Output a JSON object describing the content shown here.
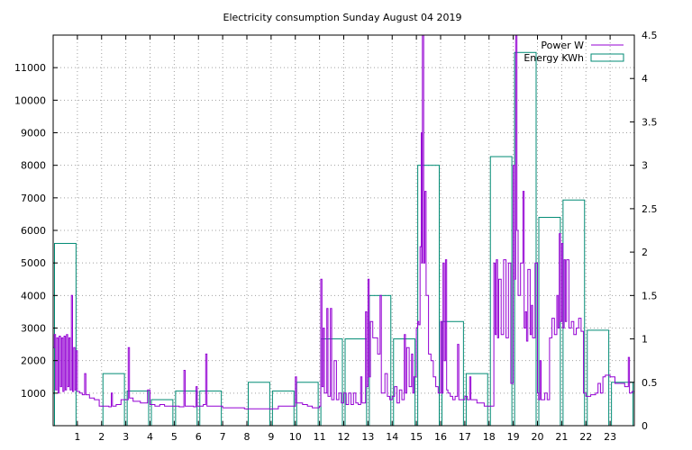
{
  "chart_data": {
    "type": "line",
    "title": "Electricity consumption Sunday August 04 2019",
    "x_axis": {
      "min": 0,
      "max": 24,
      "ticks": [
        1,
        2,
        3,
        4,
        5,
        6,
        7,
        8,
        9,
        10,
        11,
        12,
        13,
        14,
        15,
        16,
        17,
        18,
        19,
        20,
        21,
        22,
        23
      ]
    },
    "y_axis_left": {
      "min": 0,
      "max": 12000,
      "ticks": [
        1000,
        2000,
        3000,
        4000,
        5000,
        6000,
        7000,
        8000,
        9000,
        10000,
        11000
      ]
    },
    "y_axis_right": {
      "min": 0,
      "max": 4.5,
      "ticks": [
        "0",
        "0.5",
        "1",
        "1.5",
        "2",
        "2.5",
        "3",
        "3.5",
        "4",
        "4.5"
      ]
    },
    "grid": true,
    "legend_position": "top-right",
    "series": [
      {
        "name": "Power W",
        "axis": "left",
        "color": "#9400d3",
        "points": [
          [
            0.0,
            2400
          ],
          [
            0.05,
            2800
          ],
          [
            0.1,
            1100
          ],
          [
            0.15,
            2700
          ],
          [
            0.2,
            1000
          ],
          [
            0.25,
            2750
          ],
          [
            0.3,
            1200
          ],
          [
            0.35,
            2700
          ],
          [
            0.4,
            1050
          ],
          [
            0.45,
            2750
          ],
          [
            0.5,
            1100
          ],
          [
            0.55,
            2800
          ],
          [
            0.6,
            1200
          ],
          [
            0.65,
            2700
          ],
          [
            0.7,
            1100
          ],
          [
            0.75,
            4000
          ],
          [
            0.8,
            1050
          ],
          [
            0.85,
            2400
          ],
          [
            0.9,
            1100
          ],
          [
            0.95,
            2300
          ],
          [
            1.0,
            1050
          ],
          [
            1.1,
            1000
          ],
          [
            1.2,
            950
          ],
          [
            1.3,
            1600
          ],
          [
            1.35,
            950
          ],
          [
            1.5,
            850
          ],
          [
            1.7,
            800
          ],
          [
            1.9,
            600
          ],
          [
            2.1,
            600
          ],
          [
            2.3,
            580
          ],
          [
            2.4,
            1000
          ],
          [
            2.45,
            600
          ],
          [
            2.6,
            650
          ],
          [
            2.8,
            800
          ],
          [
            3.0,
            800
          ],
          [
            3.1,
            2400
          ],
          [
            3.15,
            850
          ],
          [
            3.3,
            750
          ],
          [
            3.6,
            700
          ],
          [
            3.8,
            700
          ],
          [
            3.9,
            1100
          ],
          [
            4.0,
            650
          ],
          [
            4.2,
            600
          ],
          [
            4.4,
            650
          ],
          [
            4.6,
            600
          ],
          [
            4.8,
            600
          ],
          [
            5.0,
            600
          ],
          [
            5.2,
            580
          ],
          [
            5.4,
            1700
          ],
          [
            5.45,
            600
          ],
          [
            5.6,
            600
          ],
          [
            5.8,
            580
          ],
          [
            5.9,
            1200
          ],
          [
            5.95,
            600
          ],
          [
            6.2,
            650
          ],
          [
            6.3,
            2200
          ],
          [
            6.35,
            600
          ],
          [
            6.6,
            600
          ],
          [
            6.9,
            600
          ],
          [
            7.0,
            550
          ],
          [
            7.3,
            550
          ],
          [
            7.6,
            550
          ],
          [
            7.9,
            520
          ],
          [
            8.2,
            520
          ],
          [
            8.5,
            520
          ],
          [
            8.8,
            520
          ],
          [
            9.0,
            520
          ],
          [
            9.3,
            600
          ],
          [
            9.5,
            600
          ],
          [
            9.8,
            600
          ],
          [
            10.0,
            1500
          ],
          [
            10.05,
            700
          ],
          [
            10.3,
            650
          ],
          [
            10.5,
            600
          ],
          [
            10.7,
            550
          ],
          [
            10.9,
            550
          ],
          [
            11.0,
            600
          ],
          [
            11.05,
            4500
          ],
          [
            11.1,
            1200
          ],
          [
            11.15,
            3000
          ],
          [
            11.2,
            1000
          ],
          [
            11.3,
            3600
          ],
          [
            11.35,
            900
          ],
          [
            11.45,
            3600
          ],
          [
            11.5,
            800
          ],
          [
            11.6,
            2000
          ],
          [
            11.7,
            800
          ],
          [
            11.8,
            1000
          ],
          [
            11.9,
            700
          ],
          [
            12.0,
            1000
          ],
          [
            12.1,
            650
          ],
          [
            12.2,
            1000
          ],
          [
            12.3,
            650
          ],
          [
            12.4,
            1000
          ],
          [
            12.5,
            700
          ],
          [
            12.6,
            650
          ],
          [
            12.7,
            1500
          ],
          [
            12.75,
            700
          ],
          [
            12.9,
            3500
          ],
          [
            12.95,
            1200
          ],
          [
            13.0,
            4500
          ],
          [
            13.05,
            1500
          ],
          [
            13.1,
            3200
          ],
          [
            13.2,
            2700
          ],
          [
            13.3,
            2700
          ],
          [
            13.4,
            2200
          ],
          [
            13.5,
            4000
          ],
          [
            13.55,
            1000
          ],
          [
            13.7,
            1600
          ],
          [
            13.8,
            900
          ],
          [
            13.9,
            800
          ],
          [
            14.0,
            900
          ],
          [
            14.1,
            1200
          ],
          [
            14.2,
            700
          ],
          [
            14.3,
            1100
          ],
          [
            14.4,
            800
          ],
          [
            14.5,
            2800
          ],
          [
            14.55,
            1000
          ],
          [
            14.6,
            2400
          ],
          [
            14.7,
            1200
          ],
          [
            14.8,
            2200
          ],
          [
            14.85,
            1000
          ],
          [
            14.9,
            1500
          ],
          [
            15.0,
            3000
          ],
          [
            15.05,
            3200
          ],
          [
            15.1,
            3100
          ],
          [
            15.15,
            5500
          ],
          [
            15.2,
            9000
          ],
          [
            15.22,
            5000
          ],
          [
            15.25,
            12000
          ],
          [
            15.3,
            5000
          ],
          [
            15.35,
            7200
          ],
          [
            15.4,
            4000
          ],
          [
            15.5,
            2200
          ],
          [
            15.6,
            2000
          ],
          [
            15.7,
            1500
          ],
          [
            15.8,
            1200
          ],
          [
            15.9,
            1000
          ],
          [
            16.0,
            3200
          ],
          [
            16.05,
            1000
          ],
          [
            16.1,
            5000
          ],
          [
            16.15,
            2000
          ],
          [
            16.2,
            5100
          ],
          [
            16.25,
            1100
          ],
          [
            16.3,
            1000
          ],
          [
            16.4,
            900
          ],
          [
            16.5,
            800
          ],
          [
            16.6,
            900
          ],
          [
            16.7,
            2500
          ],
          [
            16.75,
            800
          ],
          [
            16.9,
            800
          ],
          [
            17.0,
            900
          ],
          [
            17.1,
            800
          ],
          [
            17.2,
            1500
          ],
          [
            17.25,
            800
          ],
          [
            17.5,
            700
          ],
          [
            17.8,
            600
          ],
          [
            18.0,
            600
          ],
          [
            18.1,
            600
          ],
          [
            18.2,
            5000
          ],
          [
            18.25,
            2800
          ],
          [
            18.3,
            5100
          ],
          [
            18.35,
            2700
          ],
          [
            18.4,
            4500
          ],
          [
            18.5,
            2800
          ],
          [
            18.6,
            5100
          ],
          [
            18.7,
            2700
          ],
          [
            18.8,
            5000
          ],
          [
            18.9,
            1300
          ],
          [
            19.0,
            8000
          ],
          [
            19.05,
            4500
          ],
          [
            19.1,
            12000
          ],
          [
            19.15,
            6000
          ],
          [
            19.2,
            4000
          ],
          [
            19.3,
            5000
          ],
          [
            19.4,
            7200
          ],
          [
            19.45,
            3000
          ],
          [
            19.5,
            3500
          ],
          [
            19.55,
            2600
          ],
          [
            19.6,
            4800
          ],
          [
            19.7,
            2800
          ],
          [
            19.75,
            3700
          ],
          [
            19.8,
            2700
          ],
          [
            19.9,
            5000
          ],
          [
            20.0,
            1000
          ],
          [
            20.05,
            800
          ],
          [
            20.1,
            2000
          ],
          [
            20.15,
            800
          ],
          [
            20.3,
            1000
          ],
          [
            20.4,
            800
          ],
          [
            20.5,
            2700
          ],
          [
            20.6,
            3300
          ],
          [
            20.7,
            2800
          ],
          [
            20.8,
            4000
          ],
          [
            20.85,
            3000
          ],
          [
            20.9,
            5900
          ],
          [
            20.95,
            3200
          ],
          [
            21.0,
            5600
          ],
          [
            21.05,
            3000
          ],
          [
            21.1,
            5100
          ],
          [
            21.15,
            3200
          ],
          [
            21.2,
            5100
          ],
          [
            21.3,
            3000
          ],
          [
            21.4,
            3200
          ],
          [
            21.5,
            2800
          ],
          [
            21.6,
            3000
          ],
          [
            21.7,
            3300
          ],
          [
            21.8,
            2900
          ],
          [
            21.9,
            1000
          ],
          [
            22.0,
            900
          ],
          [
            22.2,
            950
          ],
          [
            22.4,
            1000
          ],
          [
            22.5,
            1300
          ],
          [
            22.6,
            1000
          ],
          [
            22.7,
            1500
          ],
          [
            22.8,
            1550
          ],
          [
            23.0,
            1500
          ],
          [
            23.2,
            1300
          ],
          [
            23.4,
            1300
          ],
          [
            23.6,
            1200
          ],
          [
            23.75,
            2100
          ],
          [
            23.8,
            1000
          ],
          [
            23.9,
            1050
          ],
          [
            24.0,
            1000
          ]
        ]
      },
      {
        "name": "Energy KWh",
        "axis": "right",
        "color": "#008b74",
        "hourly_values": [
          2.1,
          0,
          0.6,
          0.4,
          0.3,
          0.4,
          0.4,
          0,
          0.5,
          0.4,
          0.5,
          1.0,
          1.0,
          1.5,
          1.0,
          3.0,
          1.2,
          0.6,
          3.1,
          4.3,
          2.4,
          2.6,
          1.1,
          0.5
        ]
      }
    ]
  }
}
